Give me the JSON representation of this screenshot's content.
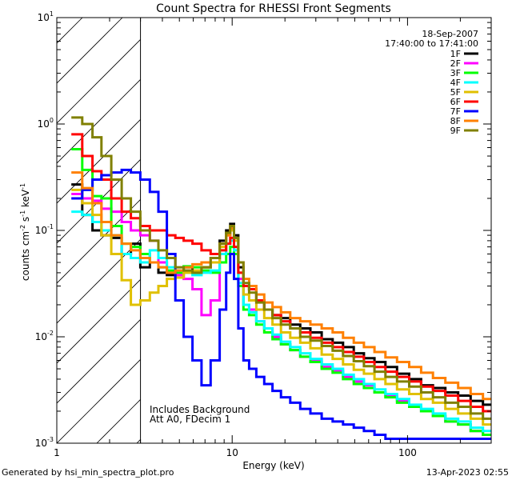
{
  "chart_data": {
    "type": "line",
    "title": "Count Spectra for RHESSI Front Segments",
    "xlabel": "Energy (keV)",
    "ylabel_parts": {
      "base": "counts cm",
      "exp1": "-2",
      "mid1": " s",
      "exp2": "-1",
      "mid2": " keV",
      "exp3": "-1"
    },
    "xscale": "log",
    "yscale": "log",
    "xlim": [
      1,
      300
    ],
    "ylim": [
      0.001,
      10
    ],
    "x_ticks": [
      {
        "value": 1,
        "label": "1"
      },
      {
        "value": 10,
        "label": "10"
      },
      {
        "value": 100,
        "label": "100"
      }
    ],
    "y_ticks": [
      {
        "value": 0.001,
        "base": "10",
        "exp": "-3"
      },
      {
        "value": 0.01,
        "base": "10",
        "exp": "-2"
      },
      {
        "value": 0.1,
        "base": "10",
        "exp": "-1"
      },
      {
        "value": 1,
        "base": "10",
        "exp": "0"
      },
      {
        "value": 10,
        "base": "10",
        "exp": "1"
      }
    ],
    "hatched_region": {
      "x_start": 1,
      "x_end": 3
    },
    "legend_position": "top-right",
    "header_lines": [
      "18-Sep-2007",
      "17:40:00 to 17:41:00"
    ],
    "annotations": [
      "Includes Background",
      "Att A0, FDecim 1"
    ],
    "footer_left": "Generated by hsi_min_spectra_plot.pro",
    "footer_right": "13-Apr-2023 02:55",
    "series": [
      {
        "name": "1F",
        "color": "#000000",
        "x": [
          1.3,
          1.5,
          1.7,
          1.9,
          2.2,
          2.5,
          2.8,
          3.2,
          3.6,
          4.0,
          4.5,
          5.0,
          5.6,
          6.3,
          7.1,
          8.0,
          9.0,
          9.5,
          10.0,
          10.5,
          11.2,
          12.0,
          13.0,
          14.5,
          16,
          18,
          20,
          23,
          26,
          30,
          35,
          40,
          46,
          53,
          60,
          70,
          80,
          95,
          110,
          130,
          150,
          180,
          210,
          250,
          290
        ],
        "y": [
          0.27,
          0.14,
          0.1,
          0.09,
          0.085,
          0.06,
          0.075,
          0.045,
          0.05,
          0.04,
          0.038,
          0.036,
          0.045,
          0.04,
          0.045,
          0.05,
          0.08,
          0.1,
          0.115,
          0.09,
          0.045,
          0.03,
          0.028,
          0.022,
          0.018,
          0.016,
          0.015,
          0.013,
          0.012,
          0.011,
          0.0095,
          0.0088,
          0.008,
          0.007,
          0.0063,
          0.0058,
          0.0052,
          0.0045,
          0.004,
          0.0035,
          0.0033,
          0.003,
          0.0028,
          0.0025,
          0.0023
        ]
      },
      {
        "name": "2F",
        "color": "#ff00ff",
        "x": [
          1.3,
          1.5,
          1.7,
          1.9,
          2.2,
          2.5,
          2.8,
          3.2,
          3.6,
          4.0,
          4.5,
          5.0,
          5.6,
          6.3,
          7.1,
          8.0,
          9.0,
          9.5,
          10.0,
          10.5,
          11.2,
          12.0,
          13.0,
          14.5,
          16,
          18,
          20,
          23,
          26,
          30,
          35,
          40,
          46,
          53,
          60,
          70,
          80,
          95,
          110,
          130,
          150,
          180,
          210,
          250,
          290
        ],
        "y": [
          0.22,
          0.2,
          0.19,
          0.16,
          0.15,
          0.12,
          0.1,
          0.09,
          0.08,
          0.05,
          0.04,
          0.038,
          0.035,
          0.028,
          0.016,
          0.022,
          0.06,
          0.09,
          0.1,
          0.07,
          0.035,
          0.02,
          0.018,
          0.014,
          0.012,
          0.01,
          0.0085,
          0.0075,
          0.0065,
          0.006,
          0.0052,
          0.0048,
          0.0042,
          0.0038,
          0.0035,
          0.003,
          0.0028,
          0.0025,
          0.0022,
          0.002,
          0.0018,
          0.0016,
          0.0015,
          0.0013,
          0.0012
        ]
      },
      {
        "name": "3F",
        "color": "#00ff00",
        "x": [
          1.3,
          1.5,
          1.7,
          1.9,
          2.2,
          2.5,
          2.8,
          3.2,
          3.6,
          4.0,
          4.5,
          5.0,
          5.6,
          6.3,
          7.1,
          8.0,
          9.0,
          9.5,
          10.0,
          10.5,
          11.2,
          12.0,
          13.0,
          14.5,
          16,
          18,
          20,
          23,
          26,
          30,
          35,
          40,
          46,
          53,
          60,
          70,
          80,
          95,
          110,
          130,
          150,
          180,
          210,
          250,
          290
        ],
        "y": [
          0.58,
          0.37,
          0.21,
          0.2,
          0.11,
          0.075,
          0.07,
          0.06,
          0.05,
          0.045,
          0.042,
          0.04,
          0.046,
          0.045,
          0.042,
          0.04,
          0.05,
          0.06,
          0.07,
          0.06,
          0.03,
          0.018,
          0.016,
          0.013,
          0.011,
          0.0095,
          0.0085,
          0.0075,
          0.0065,
          0.0058,
          0.005,
          0.0046,
          0.004,
          0.0036,
          0.0033,
          0.003,
          0.0027,
          0.0024,
          0.0022,
          0.002,
          0.0018,
          0.0016,
          0.0015,
          0.0013,
          0.0012
        ]
      },
      {
        "name": "4F",
        "color": "#00ffff",
        "x": [
          1.3,
          1.5,
          1.7,
          1.9,
          2.2,
          2.5,
          2.8,
          3.2,
          3.6,
          4.0,
          4.5,
          5.0,
          5.6,
          6.3,
          7.1,
          8.0,
          9.0,
          9.5,
          10.0,
          10.5,
          11.2,
          12.0,
          13.0,
          14.5,
          16,
          18,
          20,
          23,
          26,
          30,
          35,
          40,
          46,
          53,
          60,
          70,
          80,
          95,
          110,
          130,
          150,
          180,
          210,
          250,
          290
        ],
        "y": [
          0.15,
          0.14,
          0.12,
          0.1,
          0.09,
          0.06,
          0.055,
          0.05,
          0.065,
          0.055,
          0.045,
          0.042,
          0.04,
          0.038,
          0.04,
          0.042,
          0.06,
          0.075,
          0.08,
          0.065,
          0.032,
          0.02,
          0.017,
          0.014,
          0.012,
          0.0105,
          0.009,
          0.008,
          0.007,
          0.0062,
          0.0055,
          0.005,
          0.0044,
          0.004,
          0.0036,
          0.0032,
          0.0029,
          0.0026,
          0.0023,
          0.0021,
          0.0019,
          0.0017,
          0.0016,
          0.0014,
          0.0013
        ]
      },
      {
        "name": "5F",
        "color": "#e0c000",
        "x": [
          1.3,
          1.5,
          1.7,
          1.9,
          2.2,
          2.5,
          2.8,
          3.2,
          3.6,
          4.0,
          4.5,
          5.0,
          5.6,
          6.3,
          7.1,
          8.0,
          9.0,
          9.5,
          10.0,
          10.5,
          11.2,
          12.0,
          13.0,
          14.5,
          16,
          18,
          20,
          23,
          26,
          30,
          35,
          40,
          46,
          53,
          60,
          70,
          80,
          95,
          110,
          130,
          150,
          180,
          210,
          250,
          290
        ],
        "y": [
          0.24,
          0.18,
          0.14,
          0.09,
          0.06,
          0.034,
          0.02,
          0.022,
          0.026,
          0.03,
          0.035,
          0.036,
          0.04,
          0.042,
          0.045,
          0.05,
          0.07,
          0.09,
          0.1,
          0.08,
          0.04,
          0.025,
          0.022,
          0.018,
          0.015,
          0.013,
          0.011,
          0.0098,
          0.0088,
          0.0078,
          0.0068,
          0.0062,
          0.0055,
          0.0049,
          0.0045,
          0.004,
          0.0036,
          0.0032,
          0.0029,
          0.0026,
          0.0024,
          0.0021,
          0.0019,
          0.0017,
          0.0015
        ]
      },
      {
        "name": "6F",
        "color": "#ff0000",
        "x": [
          1.3,
          1.5,
          1.7,
          1.9,
          2.2,
          2.5,
          2.8,
          3.2,
          3.6,
          4.0,
          4.5,
          5.0,
          5.6,
          6.3,
          7.1,
          8.0,
          9.0,
          9.5,
          10.0,
          10.5,
          11.2,
          12.0,
          13.0,
          14.5,
          16,
          18,
          20,
          23,
          26,
          30,
          35,
          40,
          46,
          53,
          60,
          70,
          80,
          95,
          110,
          130,
          150,
          180,
          210,
          250,
          290
        ],
        "y": [
          0.8,
          0.5,
          0.36,
          0.3,
          0.2,
          0.15,
          0.13,
          0.11,
          0.1,
          0.1,
          0.09,
          0.085,
          0.08,
          0.075,
          0.065,
          0.06,
          0.065,
          0.075,
          0.085,
          0.07,
          0.04,
          0.03,
          0.028,
          0.022,
          0.018,
          0.016,
          0.014,
          0.012,
          0.011,
          0.0098,
          0.0088,
          0.008,
          0.0072,
          0.0065,
          0.0058,
          0.0052,
          0.0047,
          0.0042,
          0.0038,
          0.0034,
          0.0031,
          0.0028,
          0.0025,
          0.0022,
          0.002
        ]
      },
      {
        "name": "7F",
        "color": "#0000ff",
        "x": [
          1.3,
          1.5,
          1.7,
          1.9,
          2.2,
          2.5,
          2.8,
          3.2,
          3.6,
          4.0,
          4.5,
          5.0,
          5.6,
          6.3,
          7.1,
          8.0,
          9.0,
          9.5,
          10.0,
          10.5,
          11.2,
          12.0,
          13.0,
          14.5,
          16,
          18,
          20,
          23,
          26,
          30,
          35,
          40,
          46,
          53,
          60,
          70,
          80,
          95,
          110,
          130,
          150,
          180,
          210,
          250,
          290
        ],
        "y": [
          0.2,
          0.24,
          0.3,
          0.33,
          0.35,
          0.37,
          0.35,
          0.3,
          0.23,
          0.15,
          0.06,
          0.022,
          0.01,
          0.006,
          0.0035,
          0.006,
          0.018,
          0.04,
          0.06,
          0.035,
          0.012,
          0.006,
          0.005,
          0.0042,
          0.0036,
          0.0031,
          0.0027,
          0.0024,
          0.0021,
          0.0019,
          0.0017,
          0.0016,
          0.0015,
          0.0014,
          0.0013,
          0.0012,
          0.0011,
          0.0011,
          0.0011,
          0.0011,
          0.0011,
          0.0011,
          0.0011,
          0.0011,
          0.0011
        ]
      },
      {
        "name": "8F",
        "color": "#ff8000",
        "x": [
          1.3,
          1.5,
          1.7,
          1.9,
          2.2,
          2.5,
          2.8,
          3.2,
          3.6,
          4.0,
          4.5,
          5.0,
          5.6,
          6.3,
          7.1,
          8.0,
          9.0,
          9.5,
          10.0,
          10.5,
          11.2,
          12.0,
          13.0,
          14.5,
          16,
          18,
          20,
          23,
          26,
          30,
          35,
          40,
          46,
          53,
          60,
          70,
          80,
          95,
          110,
          130,
          150,
          180,
          210,
          250,
          290
        ],
        "y": [
          0.35,
          0.25,
          0.18,
          0.12,
          0.09,
          0.075,
          0.065,
          0.055,
          0.05,
          0.045,
          0.04,
          0.042,
          0.045,
          0.048,
          0.05,
          0.055,
          0.075,
          0.09,
          0.105,
          0.085,
          0.05,
          0.035,
          0.03,
          0.025,
          0.021,
          0.019,
          0.017,
          0.015,
          0.014,
          0.013,
          0.012,
          0.011,
          0.0098,
          0.0088,
          0.008,
          0.0072,
          0.0064,
          0.0058,
          0.0052,
          0.0046,
          0.0041,
          0.0037,
          0.0033,
          0.0029,
          0.0026
        ]
      },
      {
        "name": "9F",
        "color": "#808000",
        "x": [
          1.3,
          1.5,
          1.7,
          1.9,
          2.2,
          2.5,
          2.8,
          3.2,
          3.6,
          4.0,
          4.5,
          5.0,
          5.6,
          6.3,
          7.1,
          8.0,
          9.0,
          9.5,
          10.0,
          10.5,
          11.2,
          12.0,
          13.0,
          14.5,
          16,
          18,
          20,
          23,
          26,
          30,
          35,
          40,
          46,
          53,
          60,
          70,
          80,
          95,
          110,
          130,
          150,
          180,
          210,
          250,
          290
        ],
        "y": [
          1.15,
          1.0,
          0.75,
          0.5,
          0.3,
          0.2,
          0.15,
          0.1,
          0.08,
          0.065,
          0.055,
          0.045,
          0.042,
          0.04,
          0.045,
          0.055,
          0.075,
          0.095,
          0.11,
          0.085,
          0.05,
          0.032,
          0.026,
          0.021,
          0.018,
          0.015,
          0.013,
          0.012,
          0.01,
          0.0092,
          0.0082,
          0.0074,
          0.0066,
          0.0059,
          0.0053,
          0.0047,
          0.0042,
          0.0038,
          0.0034,
          0.003,
          0.0027,
          0.0024,
          0.0022,
          0.0019,
          0.0017
        ]
      }
    ]
  }
}
